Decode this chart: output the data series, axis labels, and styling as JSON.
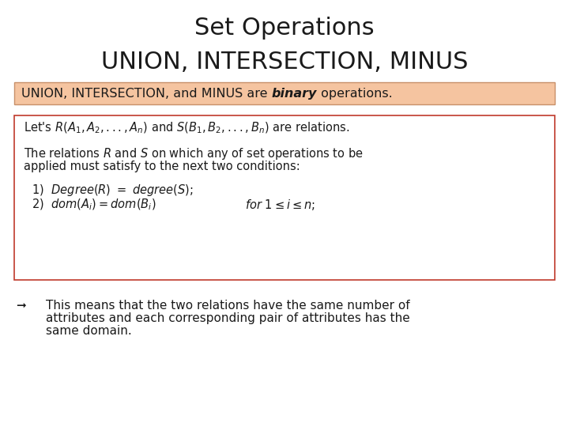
{
  "title_line1": "Set Operations",
  "title_line2": "UNION, INTERSECTION, MINUS",
  "title_fontsize": 22,
  "bg_color": "#ffffff",
  "highlight_box_color": "#f5c4a0",
  "highlight_box_edge": "#c8906a",
  "highlight_text_normal": "UNION, INTERSECTION, and MINUS are ",
  "highlight_text_bold": "binary",
  "highlight_text_end": " operations.",
  "highlight_fontsize": 11.5,
  "red_box_edge": "#c0392b",
  "red_box_face": "#ffffff",
  "math_fontsize": 10.5,
  "bullet_fontsize": 11,
  "bullet_arrow": "➞"
}
